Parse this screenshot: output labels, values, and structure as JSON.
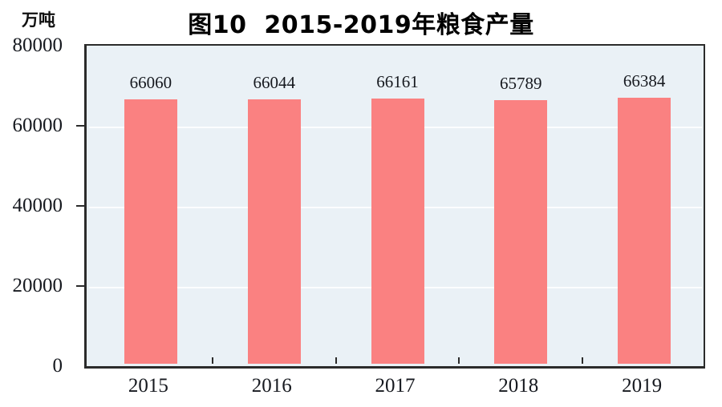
{
  "chart_data": {
    "type": "bar",
    "title": "图10  2015-2019年粮食产量",
    "unit_label": "万吨",
    "categories": [
      "2015",
      "2016",
      "2017",
      "2018",
      "2019"
    ],
    "values": [
      66060,
      66044,
      66161,
      65789,
      66384
    ],
    "data_labels": [
      "66060",
      "66044",
      "66161",
      "65789",
      "66384"
    ],
    "ylim": [
      0,
      80000
    ],
    "yticks": [
      0,
      20000,
      40000,
      60000,
      80000
    ],
    "grid": true,
    "legend_position": "none",
    "colors": {
      "bar": "#fa8181",
      "plot_bg": "#eaf1f6",
      "gridline": "#fbfdfe",
      "axis": "#2b2b2b",
      "text": "#16191f",
      "title": "#000000"
    }
  }
}
